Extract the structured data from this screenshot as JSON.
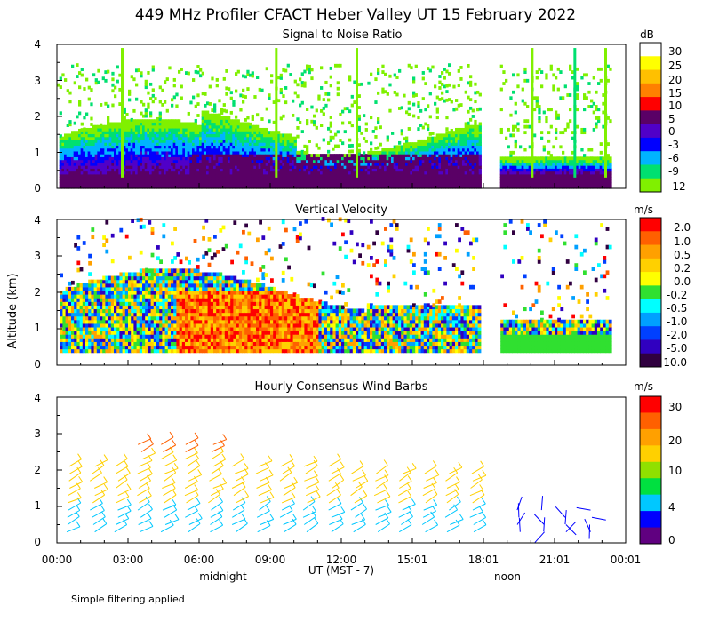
{
  "title": "449 MHz Profiler CFACT Heber Valley UT 15 February 2022",
  "ylabel": "Altitude (km)",
  "footer_note": "Simple filtering applied",
  "chart_data": [
    {
      "type": "heatmap",
      "title": "Signal to Noise Ratio",
      "unit": "dB",
      "ylim": [
        0,
        4
      ],
      "y_ticks": [
        "0",
        "1",
        "2",
        "3",
        "4"
      ],
      "colorbar": {
        "labels": [
          "30",
          "25",
          "20",
          "15",
          "10",
          "5",
          "0",
          "-3",
          "-6",
          "-9",
          "-12"
        ],
        "colors": [
          "#ffffff",
          "#ffff00",
          "#ffc000",
          "#ff8000",
          "#ff0000",
          "#5a0066",
          "#5000c8",
          "#0000ff",
          "#00b4ff",
          "#00e070",
          "#80f000"
        ]
      }
    },
    {
      "type": "heatmap",
      "title": "Vertical Velocity",
      "unit": "m/s",
      "ylim": [
        0,
        4
      ],
      "y_ticks": [
        "0",
        "1",
        "2",
        "3",
        "4"
      ],
      "colorbar": {
        "labels": [
          "2.0",
          "1.0",
          "0.5",
          "0.2",
          "0.0",
          "-0.2",
          "-0.5",
          "-1.0",
          "-2.0",
          "-5.0",
          "-10.0"
        ],
        "colors": [
          "#ff0000",
          "#ff6000",
          "#ffa000",
          "#ffd000",
          "#ffff00",
          "#30e030",
          "#00ffff",
          "#00a0ff",
          "#0040ff",
          "#3000c0",
          "#300040"
        ]
      }
    },
    {
      "type": "barbs",
      "title": "Hourly Consensus Wind Barbs",
      "unit": "m/s",
      "ylim": [
        0,
        4
      ],
      "y_ticks": [
        "0",
        "1",
        "2",
        "3",
        "4"
      ],
      "colorbar": {
        "labels": [
          "30",
          "20",
          "10",
          "4",
          "0"
        ],
        "colors": [
          "#ff0000",
          "#ff6000",
          "#ffa000",
          "#ffd000",
          "#90e000",
          "#00e040",
          "#00c8ff",
          "#0000ff",
          "#600080"
        ]
      }
    }
  ],
  "x_axis": {
    "label": "UT  (MST - 7)",
    "ticks": [
      "00:00",
      "03:00",
      "06:00",
      "09:00",
      "12:00",
      "15:01",
      "18:01",
      "21:01",
      "00:01"
    ],
    "sublabels": [
      "midnight",
      "noon"
    ]
  }
}
